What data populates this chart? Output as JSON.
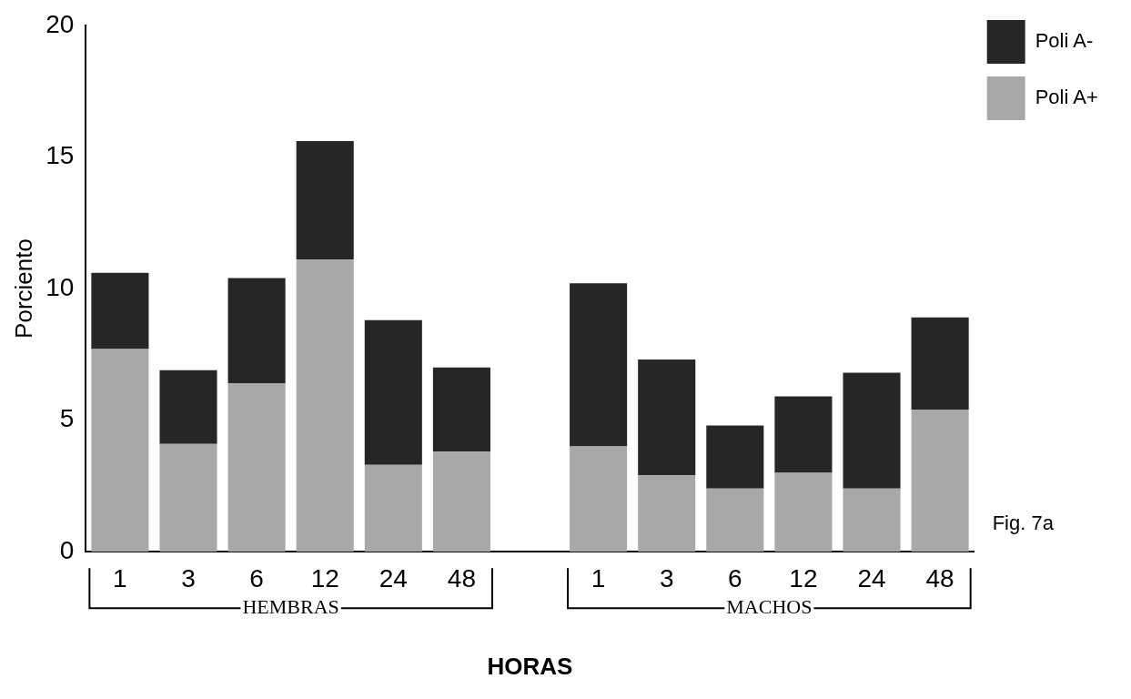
{
  "chart_data": {
    "type": "bar",
    "stacked": true,
    "categories": [
      "1",
      "3",
      "6",
      "12",
      "24",
      "48",
      null,
      "1",
      "3",
      "6",
      "12",
      "24",
      "48"
    ],
    "series": [
      {
        "name": "Poli A+",
        "color": "#a8a8a8",
        "values": [
          7.7,
          4.1,
          6.4,
          11.1,
          3.3,
          3.8,
          null,
          4.0,
          2.9,
          2.4,
          3.0,
          2.4,
          5.4
        ]
      },
      {
        "name": "Poli A-",
        "color": "#262626",
        "values": [
          2.9,
          2.8,
          4.0,
          4.5,
          5.5,
          3.2,
          null,
          6.2,
          4.4,
          2.4,
          2.9,
          4.4,
          3.5
        ]
      }
    ],
    "ylim": [
      0,
      20
    ],
    "yticks": [
      0,
      5,
      10,
      15,
      20
    ],
    "ylabel": "Porciento",
    "xlabel": "HORAS",
    "grid": false,
    "legend": "top right",
    "annotations": [
      "HEMBRAS",
      "MACHOS",
      "Fig. 7a"
    ]
  }
}
